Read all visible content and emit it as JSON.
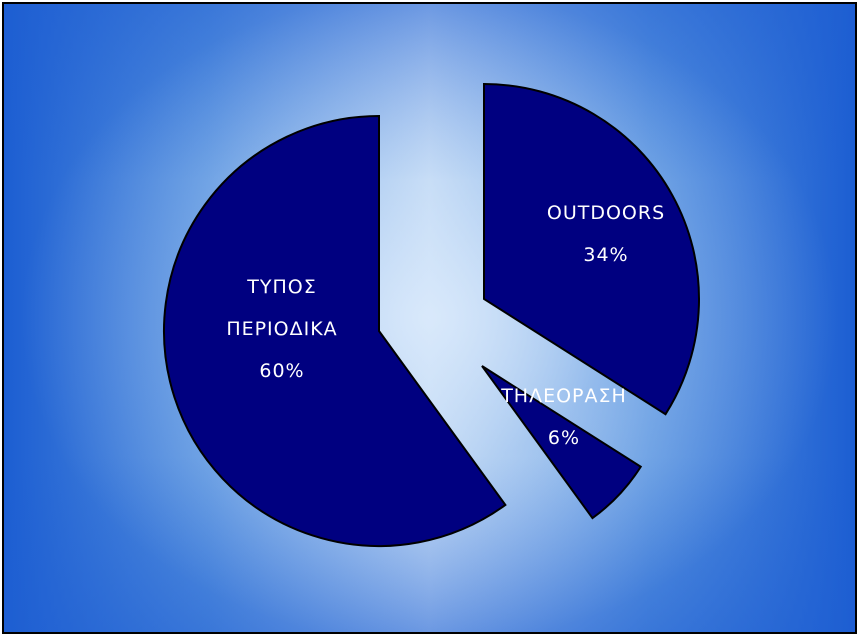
{
  "colors": {
    "slice": "#000080",
    "label": "#ffffff",
    "background_edge": "#1c5ed2",
    "background_center": "#c6dcf5"
  },
  "chart_data": {
    "type": "pie",
    "slices": [
      {
        "label_lines": [
          "ΤΥΠΟΣ",
          "ΠΕΡΙΟΔΙΚΑ"
        ],
        "value": 60,
        "value_label": "60%"
      },
      {
        "label_lines": [
          "OUTDOORS"
        ],
        "value": 34,
        "value_label": "34%"
      },
      {
        "label_lines": [
          "ΤΗΛΕΟΡΑΣΗ"
        ],
        "value": 6,
        "value_label": "6%"
      }
    ],
    "title": "",
    "legend": "none",
    "exploded": true
  }
}
